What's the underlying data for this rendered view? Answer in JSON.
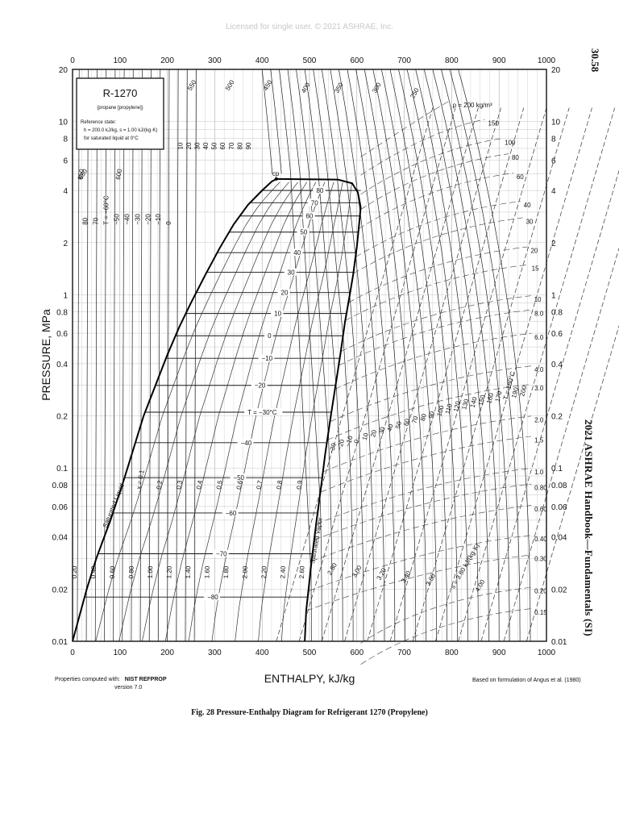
{
  "page": {
    "license": "Licensed for single user. © 2021 ASHRAE, Inc.",
    "page_number": "30.58",
    "running_title": "2021 ASHRAE Handbook—Fundamentals (SI)",
    "footer_left_prefix": "Properties computed with:",
    "footer_left_name": "NIST REFPROP",
    "footer_left_version": "version 7.0",
    "footer_right": "Based on formulation of Angus et al. (1980)",
    "caption": "Fig. 28   Pressure-Enthalpy Diagram for Refrigerant 1270 (Propylene)"
  },
  "chart_data": {
    "type": "line",
    "title": "R-1270",
    "subtitle": "(propane [propylene])",
    "reference_state_lines": [
      "Reference state:",
      "h = 200.0 kJ/kg,   s = 1.00 kJ/(kg·K)",
      "for saturated liquid at 0°C"
    ],
    "xlabel": "ENTHALPY, kJ/kg",
    "ylabel": "PRESSURE, MPa",
    "xlim": [
      0,
      1000
    ],
    "ylim": [
      0.01,
      20
    ],
    "y_scale": "log",
    "x_ticks": [
      "0",
      "100",
      "200",
      "300",
      "400",
      "500",
      "600",
      "700",
      "800",
      "900",
      "1000"
    ],
    "y_ticks": [
      {
        "v": 0.01,
        "label": "0.01"
      },
      {
        "v": 0.02,
        "label": "0.02"
      },
      {
        "v": 0.04,
        "label": "0.04"
      },
      {
        "v": 0.06,
        "label": "0.06"
      },
      {
        "v": 0.08,
        "label": "0.08"
      },
      {
        "v": 0.1,
        "label": "0.1"
      },
      {
        "v": 0.2,
        "label": "0.2"
      },
      {
        "v": 0.4,
        "label": "0.4"
      },
      {
        "v": 0.6,
        "label": "0.6"
      },
      {
        "v": 0.8,
        "label": "0.8"
      },
      {
        "v": 1,
        "label": "1"
      },
      {
        "v": 2,
        "label": "2"
      },
      {
        "v": 4,
        "label": "4"
      },
      {
        "v": 6,
        "label": "6"
      },
      {
        "v": 8,
        "label": "8"
      },
      {
        "v": 10,
        "label": "10"
      },
      {
        "v": 20,
        "label": "20"
      }
    ],
    "grid": true,
    "critical_point_label": "cp",
    "saturated_liquid_label": "Saturated Liquid",
    "saturated_vapor_label": "Saturated Vapor",
    "saturated_liquid": [
      [
        0,
        0.01
      ],
      [
        30,
        0.02
      ],
      [
        50,
        0.03
      ],
      [
        80,
        0.05
      ],
      [
        105,
        0.08
      ],
      [
        125,
        0.12
      ],
      [
        150,
        0.2
      ],
      [
        175,
        0.3
      ],
      [
        200,
        0.45
      ],
      [
        225,
        0.65
      ],
      [
        250,
        0.9
      ],
      [
        280,
        1.3
      ],
      [
        310,
        1.85
      ],
      [
        340,
        2.55
      ],
      [
        370,
        3.3
      ],
      [
        400,
        4.0
      ],
      [
        420,
        4.5
      ],
      [
        430,
        4.66
      ]
    ],
    "saturated_vapor": [
      [
        490,
        0.01
      ],
      [
        493,
        0.015
      ],
      [
        498,
        0.02
      ],
      [
        505,
        0.03
      ],
      [
        515,
        0.05
      ],
      [
        525,
        0.08
      ],
      [
        533,
        0.12
      ],
      [
        545,
        0.2
      ],
      [
        555,
        0.3
      ],
      [
        565,
        0.45
      ],
      [
        575,
        0.7
      ],
      [
        585,
        1.0
      ],
      [
        592,
        1.3
      ],
      [
        600,
        1.9
      ],
      [
        605,
        2.6
      ],
      [
        608,
        3.2
      ],
      [
        602,
        3.9
      ],
      [
        590,
        4.4
      ],
      [
        560,
        4.62
      ],
      [
        430,
        4.66
      ]
    ],
    "isotherm_labels_in_dome": [
      {
        "label": "80",
        "p": 4.0
      },
      {
        "label": "70",
        "p": 3.4
      },
      {
        "label": "60",
        "p": 2.85
      },
      {
        "label": "50",
        "p": 2.3
      },
      {
        "label": "40",
        "p": 1.75
      },
      {
        "label": "30",
        "p": 1.35
      },
      {
        "label": "20",
        "p": 1.03
      },
      {
        "label": "10",
        "p": 0.78
      },
      {
        "label": "0",
        "p": 0.58
      },
      {
        "label": "−10",
        "p": 0.43
      },
      {
        "label": "−20",
        "p": 0.3
      },
      {
        "label": "T = −30°C",
        "p": 0.21
      },
      {
        "label": "−40",
        "p": 0.14
      },
      {
        "label": "−50",
        "p": 0.088
      },
      {
        "label": "−60",
        "p": 0.055
      },
      {
        "label": "−70",
        "p": 0.032
      },
      {
        "label": "−80",
        "p": 0.018
      }
    ],
    "quality_labels": [
      "x = 0.1",
      "0.2",
      "0.3",
      "0.4",
      "0.5",
      "0.6",
      "0.7",
      "0.8",
      "0.9"
    ],
    "entropy_labels_liquid": [
      "0.20",
      "0.40",
      "0.60",
      "0.80",
      "1.00",
      "1.20",
      "1.40",
      "1.60",
      "1.80",
      "2.00",
      "2.20",
      "2.40",
      "2.60"
    ],
    "entropy_labels_vapor": [
      "2.80",
      "3.00",
      "3.20",
      "3.40",
      "3.60",
      "s = 3.80 kJ/(kg·K)",
      "4.00"
    ],
    "density_labels": [
      {
        "label": "ρ = 200 kg/m³",
        "h": 795,
        "p": 12.5
      },
      {
        "label": "150",
        "h": 870,
        "p": 9.8
      },
      {
        "label": "100",
        "h": 905,
        "p": 7.6
      },
      {
        "label": "80",
        "h": 920,
        "p": 6.2
      },
      {
        "label": "60",
        "h": 930,
        "p": 4.8
      },
      {
        "label": "40",
        "h": 945,
        "p": 3.3
      },
      {
        "label": "30",
        "h": 950,
        "p": 2.65
      },
      {
        "label": "20",
        "h": 960,
        "p": 1.8
      },
      {
        "label": "15",
        "h": 962,
        "p": 1.42
      },
      {
        "label": "10",
        "h": 967,
        "p": 0.94
      },
      {
        "label": "8.0",
        "h": 968,
        "p": 0.78
      },
      {
        "label": "6.0",
        "h": 968,
        "p": 0.57
      },
      {
        "label": "4.0",
        "h": 968,
        "p": 0.37
      },
      {
        "label": "3.0",
        "h": 968,
        "p": 0.29
      },
      {
        "label": "2.0",
        "h": 968,
        "p": 0.19
      },
      {
        "label": "1.5",
        "h": 968,
        "p": 0.145
      },
      {
        "label": "1.0",
        "h": 968,
        "p": 0.095
      },
      {
        "label": "0.80",
        "h": 968,
        "p": 0.077
      },
      {
        "label": "0.60",
        "h": 968,
        "p": 0.058
      },
      {
        "label": "0.40",
        "h": 968,
        "p": 0.039
      },
      {
        "label": "0.30",
        "h": 968,
        "p": 0.03
      },
      {
        "label": "0.20",
        "h": 968,
        "p": 0.0195
      },
      {
        "label": "0.15",
        "h": 968,
        "p": 0.0147
      }
    ],
    "liquid_isotherm_labels_top": [
      "10",
      "20",
      "30",
      "40",
      "50",
      "60",
      "70",
      "80",
      "90"
    ],
    "liquid_isotherm_labels_mid": [
      "80",
      "70",
      "T = −60°C",
      "−50",
      "−40",
      "−30",
      "−20",
      "−10",
      "0"
    ],
    "high_T_labels_top": [
      "650",
      "550",
      "500",
      "450",
      "400",
      "350",
      "300",
      "250"
    ],
    "high_T_labels_left": [
      "650",
      "600"
    ],
    "vapor_isotherm_labels": [
      "−30",
      "−20",
      "−10",
      "0",
      "10",
      "20",
      "30",
      "40",
      "50",
      "60",
      "70",
      "80",
      "90",
      "100",
      "110",
      "120",
      "130",
      "140",
      "150",
      "160",
      "170",
      "T = 180°C",
      "190",
      "200"
    ]
  }
}
